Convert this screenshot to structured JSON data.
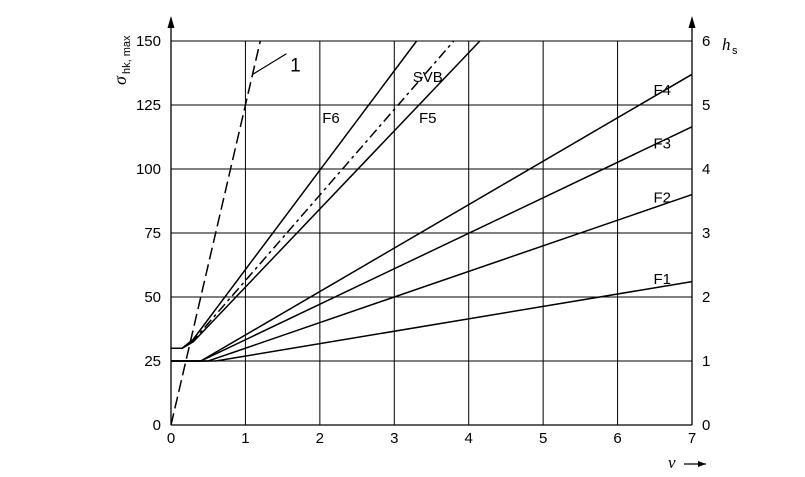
{
  "chart_data": {
    "type": "line",
    "xlabel": "v",
    "ylabel_left": "σ",
    "ylabel_left_subscript": "hk, max",
    "ylabel_right": "h",
    "ylabel_right_subscript": "s",
    "xlim": [
      0,
      7
    ],
    "ylim_left": [
      0,
      150
    ],
    "ylim_right": [
      0,
      6
    ],
    "x_ticks": [
      "0",
      "1",
      "2",
      "3",
      "4",
      "5",
      "6",
      "7"
    ],
    "y_ticks_left": [
      "0",
      "25",
      "50",
      "75",
      "100",
      "125",
      "150"
    ],
    "y_ticks_right": [
      "0",
      "1",
      "2",
      "3",
      "4",
      "5",
      "6"
    ],
    "grid": true,
    "series": [
      {
        "name": "1",
        "style": "dashed",
        "points": [
          [
            0,
            0
          ],
          [
            1.2,
            150
          ]
        ]
      },
      {
        "name": "F6",
        "style": "solid",
        "points": [
          [
            0,
            30
          ],
          [
            0.15,
            30
          ],
          [
            0.3,
            33.5
          ],
          [
            3.3,
            150
          ]
        ]
      },
      {
        "name": "SVB",
        "style": "dashdot",
        "points": [
          [
            0,
            30
          ],
          [
            0.15,
            30
          ],
          [
            0.3,
            33
          ],
          [
            3.8,
            150
          ]
        ]
      },
      {
        "name": "F5",
        "style": "solid",
        "points": [
          [
            0,
            30
          ],
          [
            0.15,
            30
          ],
          [
            0.3,
            32.5
          ],
          [
            4.15,
            150
          ]
        ]
      },
      {
        "name": "F4",
        "style": "solid",
        "points": [
          [
            0,
            25
          ],
          [
            0.4,
            25
          ],
          [
            7,
            137
          ]
        ]
      },
      {
        "name": "F3",
        "style": "solid",
        "points": [
          [
            0,
            25
          ],
          [
            0.4,
            25
          ],
          [
            7,
            116.5
          ]
        ]
      },
      {
        "name": "F2",
        "style": "solid",
        "points": [
          [
            0,
            25
          ],
          [
            0.5,
            25
          ],
          [
            7,
            90
          ]
        ]
      },
      {
        "name": "F1",
        "style": "solid",
        "points": [
          [
            0,
            25
          ],
          [
            0.6,
            25
          ],
          [
            7,
            56
          ]
        ]
      }
    ]
  }
}
